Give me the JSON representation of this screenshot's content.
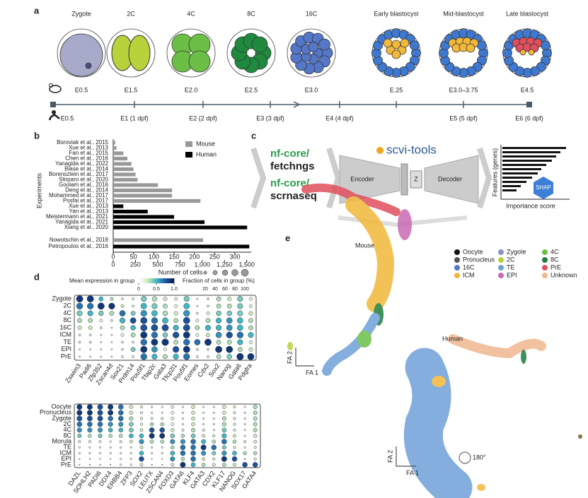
{
  "panel_labels": [
    "a",
    "b",
    "c",
    "d",
    "e"
  ],
  "panel_a": {
    "stages": [
      "Zygote",
      "2C",
      "4C",
      "8C",
      "16C",
      "Early blastocyst",
      "Mid-blastocyst",
      "Late blastocyst"
    ],
    "mouse_times": [
      "E0.5",
      "E1.5",
      "E2.0",
      "E2.5",
      "E3.0",
      "E.25",
      "E3.0–3.75",
      "E4.5"
    ],
    "human_times": [
      "E0.5",
      "E1 (1 dpf)",
      "E2 (2 dpf)",
      "E3 (3 dpf)",
      "E4 (4 dpf)",
      "E5 (5 dpf)",
      "E6 (6 dpf)"
    ]
  },
  "chart_data": [
    {
      "type": "hbar",
      "ylabel": "Experiments",
      "categories": [
        "Boroviak et al., 2015",
        "Xue et al., 2013",
        "Fan et al., 2015",
        "Chen et al., 2016",
        "Yanagida et al., 2022",
        "Biase et al., 2014",
        "Borensztein et al., 2017",
        "Stirparo et al., 2020",
        "Goolam et al., 2016",
        "Deng et al., 2014",
        "Mohammed et al., 2017",
        "Posfai et al., 2017",
        "Xue et al., 2013",
        "Yan et al., 2013",
        "Meistermann et al., 2021",
        "Yanagida et al., 2021",
        "Xiang et al., 2020"
      ],
      "series": [
        {
          "name": "Mouse",
          "color": "#999999",
          "values": [
            5,
            8,
            25,
            35,
            45,
            50,
            55,
            60,
            110,
            145,
            145,
            215,
            null,
            null,
            null,
            null,
            null
          ]
        },
        {
          "name": "Human",
          "color": "#000000",
          "values": [
            null,
            null,
            null,
            null,
            null,
            null,
            null,
            null,
            null,
            null,
            null,
            null,
            25,
            85,
            150,
            225,
            330
          ]
        }
      ],
      "xlim": [
        0,
        340
      ],
      "xticks": [
        0,
        50,
        100,
        150,
        200,
        250,
        300
      ]
    },
    {
      "type": "hbar",
      "xlabel": "Number of cells",
      "categories": [
        "Nowotschin et al., 2019",
        "Petropoulos et al., 2016"
      ],
      "series": [
        {
          "name": "Mouse",
          "color": "#999999",
          "values": [
            1010,
            null
          ]
        },
        {
          "name": "Human",
          "color": "#000000",
          "values": [
            null,
            1529
          ]
        }
      ],
      "xlim": [
        0,
        1550
      ],
      "xticks": [
        0,
        250,
        500,
        750,
        {
          "value": 1000,
          "label": "1,000"
        },
        {
          "value": 1250,
          "label": "1,250"
        },
        {
          "value": 1500,
          "label": "1,500"
        }
      ]
    },
    {
      "type": "dot",
      "color_label": "Mean expression in group",
      "clim": [
        0,
        1
      ],
      "color_ticks": [
        0,
        0.5,
        {
          "value": 1,
          "label": "1.0"
        }
      ],
      "size_label": "Fraction of cells in group (%)",
      "size_ticks": [
        20,
        40,
        60,
        80,
        100
      ],
      "rows": [
        "Zygote",
        "2C",
        "4C",
        "8C",
        "16C",
        "ICM",
        "TE",
        "EPI",
        "PrE"
      ],
      "columns": [
        "Zswim3",
        "Padi6",
        "Zfp352",
        "Zscan4d",
        "Sox21",
        "Prdm14",
        "Pou5f1",
        "Tfap2c",
        "Gata3",
        "Tfcp2l1",
        "Pou5f1",
        "Eomes",
        "Cdx2",
        "Sox2",
        "Nanog",
        "Gata6",
        "Pdgfra"
      ],
      "fraction": [
        [
          90,
          90,
          40,
          20,
          10,
          10,
          60,
          50,
          30,
          20,
          60,
          5,
          10,
          40,
          30,
          60,
          20
        ],
        [
          80,
          80,
          90,
          80,
          20,
          10,
          70,
          60,
          40,
          20,
          70,
          5,
          10,
          40,
          40,
          60,
          20
        ],
        [
          60,
          60,
          50,
          40,
          70,
          40,
          80,
          70,
          50,
          30,
          80,
          10,
          20,
          50,
          50,
          60,
          30
        ],
        [
          40,
          40,
          20,
          10,
          60,
          70,
          90,
          80,
          70,
          40,
          90,
          20,
          40,
          60,
          70,
          70,
          40
        ],
        [
          30,
          30,
          10,
          5,
          40,
          50,
          90,
          90,
          90,
          60,
          90,
          40,
          60,
          60,
          70,
          70,
          40
        ],
        [
          10,
          10,
          5,
          5,
          20,
          40,
          90,
          80,
          50,
          80,
          90,
          20,
          30,
          70,
          80,
          80,
          60
        ],
        [
          10,
          10,
          5,
          5,
          10,
          10,
          80,
          90,
          95,
          40,
          80,
          70,
          90,
          40,
          40,
          60,
          20
        ],
        [
          5,
          5,
          5,
          5,
          10,
          40,
          90,
          70,
          20,
          80,
          90,
          10,
          10,
          90,
          90,
          40,
          30
        ],
        [
          5,
          5,
          5,
          5,
          10,
          10,
          80,
          60,
          40,
          60,
          80,
          10,
          10,
          40,
          50,
          95,
          90
        ]
      ],
      "expression": [
        [
          0.9,
          0.9,
          0.5,
          0.3,
          0.1,
          0.1,
          0.4,
          0.3,
          0.2,
          0.1,
          0.4,
          0,
          0.1,
          0.3,
          0.2,
          0.4,
          0.1
        ],
        [
          0.7,
          0.7,
          0.9,
          0.9,
          0.2,
          0.1,
          0.5,
          0.4,
          0.3,
          0.1,
          0.5,
          0,
          0.1,
          0.3,
          0.3,
          0.4,
          0.1
        ],
        [
          0.4,
          0.5,
          0.4,
          0.3,
          0.7,
          0.4,
          0.6,
          0.5,
          0.3,
          0.2,
          0.6,
          0.1,
          0.1,
          0.4,
          0.4,
          0.4,
          0.2
        ],
        [
          0.3,
          0.3,
          0.1,
          0.1,
          0.5,
          0.8,
          0.8,
          0.7,
          0.5,
          0.3,
          0.8,
          0.1,
          0.3,
          0.5,
          0.6,
          0.5,
          0.3
        ],
        [
          0.2,
          0.2,
          0.1,
          0,
          0.3,
          0.5,
          0.8,
          0.8,
          0.8,
          0.5,
          0.8,
          0.3,
          0.5,
          0.5,
          0.6,
          0.5,
          0.3
        ],
        [
          0.1,
          0.1,
          0,
          0,
          0.1,
          0.3,
          0.9,
          0.7,
          0.4,
          0.8,
          0.9,
          0.1,
          0.2,
          0.6,
          0.8,
          0.7,
          0.5
        ],
        [
          0.1,
          0.1,
          0,
          0,
          0.1,
          0.1,
          0.7,
          0.9,
          0.9,
          0.3,
          0.7,
          0.7,
          0.9,
          0.3,
          0.3,
          0.5,
          0.1
        ],
        [
          0,
          0,
          0,
          0,
          0.1,
          0.4,
          0.9,
          0.6,
          0.1,
          0.8,
          0.9,
          0.1,
          0.1,
          0.9,
          0.9,
          0.3,
          0.2
        ],
        [
          0,
          0,
          0,
          0,
          0.1,
          0.1,
          0.7,
          0.5,
          0.3,
          0.5,
          0.7,
          0.1,
          0.1,
          0.3,
          0.4,
          0.9,
          0.9
        ]
      ]
    },
    {
      "type": "dot",
      "clim": [
        0,
        1
      ],
      "rows": [
        "Oocyte",
        "Pronucleus",
        "Zygote",
        "2C",
        "4C",
        "8C",
        "Morula",
        "TE",
        "ICM",
        "EPI",
        "PrE"
      ],
      "columns": [
        "DAZL",
        "SOHLH2",
        "PADI6",
        "DDX4",
        "ERBB4",
        "ZFP3",
        "SOX2",
        "LEUTX",
        "ZSCAN4",
        "FOXD3",
        "GATA6",
        "KLF4",
        "GATA3",
        "CDX2",
        "KLF17",
        "NANOG",
        "SOX17",
        "GATA4"
      ],
      "fraction": [
        [
          90,
          90,
          90,
          90,
          80,
          40,
          20,
          10,
          10,
          30,
          10,
          40,
          10,
          10,
          40,
          20,
          10,
          50
        ],
        [
          90,
          90,
          90,
          90,
          80,
          40,
          20,
          10,
          10,
          30,
          10,
          40,
          10,
          10,
          40,
          20,
          10,
          50
        ],
        [
          90,
          90,
          90,
          80,
          80,
          50,
          20,
          20,
          20,
          30,
          10,
          40,
          10,
          10,
          50,
          20,
          10,
          50
        ],
        [
          80,
          80,
          80,
          70,
          70,
          60,
          20,
          40,
          40,
          30,
          10,
          40,
          10,
          10,
          50,
          20,
          10,
          50
        ],
        [
          70,
          70,
          70,
          60,
          60,
          60,
          30,
          80,
          80,
          40,
          20,
          50,
          20,
          10,
          60,
          20,
          10,
          50
        ],
        [
          50,
          40,
          50,
          40,
          40,
          60,
          60,
          90,
          90,
          60,
          40,
          60,
          30,
          20,
          70,
          30,
          10,
          40
        ],
        [
          20,
          20,
          20,
          10,
          20,
          30,
          70,
          40,
          40,
          70,
          70,
          80,
          60,
          40,
          80,
          40,
          20,
          30
        ],
        [
          10,
          10,
          10,
          10,
          10,
          10,
          30,
          10,
          10,
          40,
          80,
          80,
          90,
          80,
          50,
          20,
          10,
          20
        ],
        [
          10,
          10,
          10,
          10,
          10,
          10,
          60,
          10,
          10,
          60,
          80,
          80,
          70,
          50,
          70,
          60,
          40,
          40
        ],
        [
          5,
          5,
          5,
          5,
          10,
          10,
          80,
          5,
          5,
          70,
          40,
          80,
          30,
          20,
          90,
          80,
          10,
          20
        ],
        [
          5,
          5,
          5,
          5,
          10,
          10,
          30,
          5,
          5,
          30,
          90,
          60,
          40,
          30,
          40,
          30,
          80,
          80
        ]
      ],
      "expression": [
        [
          0.9,
          0.9,
          0.8,
          0.9,
          0.7,
          0.2,
          0.1,
          0,
          0,
          0.1,
          0,
          0.2,
          0,
          0,
          0.2,
          0.1,
          0,
          0.3
        ],
        [
          0.9,
          0.9,
          0.8,
          0.9,
          0.7,
          0.2,
          0.1,
          0,
          0,
          0.1,
          0,
          0.2,
          0,
          0,
          0.2,
          0.1,
          0,
          0.3
        ],
        [
          0.8,
          0.8,
          0.8,
          0.7,
          0.7,
          0.3,
          0.1,
          0.1,
          0.1,
          0.1,
          0,
          0.2,
          0,
          0,
          0.3,
          0.1,
          0,
          0.3
        ],
        [
          0.7,
          0.7,
          0.7,
          0.6,
          0.6,
          0.4,
          0.1,
          0.3,
          0.3,
          0.1,
          0,
          0.2,
          0,
          0,
          0.3,
          0.1,
          0,
          0.3
        ],
        [
          0.6,
          0.6,
          0.6,
          0.5,
          0.5,
          0.4,
          0.2,
          0.8,
          0.8,
          0.2,
          0.1,
          0.3,
          0.1,
          0,
          0.4,
          0.1,
          0,
          0.3
        ],
        [
          0.4,
          0.3,
          0.4,
          0.3,
          0.3,
          0.5,
          0.5,
          0.9,
          0.9,
          0.4,
          0.3,
          0.4,
          0.2,
          0.1,
          0.5,
          0.2,
          0,
          0.2
        ],
        [
          0.1,
          0.1,
          0.1,
          0,
          0.1,
          0.2,
          0.6,
          0.3,
          0.3,
          0.6,
          0.6,
          0.7,
          0.5,
          0.3,
          0.7,
          0.3,
          0.1,
          0.2
        ],
        [
          0,
          0,
          0,
          0,
          0,
          0,
          0.2,
          0,
          0,
          0.3,
          0.7,
          0.7,
          0.9,
          0.7,
          0.4,
          0.1,
          0,
          0.1
        ],
        [
          0,
          0,
          0,
          0,
          0,
          0,
          0.5,
          0,
          0,
          0.5,
          0.7,
          0.7,
          0.6,
          0.4,
          0.6,
          0.5,
          0.3,
          0.3
        ],
        [
          0,
          0,
          0,
          0,
          0,
          0,
          0.8,
          0,
          0,
          0.6,
          0.3,
          0.7,
          0.2,
          0.1,
          0.9,
          0.8,
          0,
          0.1
        ],
        [
          0,
          0,
          0,
          0,
          0,
          0,
          0.2,
          0,
          0,
          0.2,
          0.9,
          0.5,
          0.3,
          0.2,
          0.3,
          0.2,
          0.8,
          0.8
        ]
      ]
    }
  ],
  "panel_c": {
    "nf1": "nf-core/",
    "tool1": "fetchngs",
    "nf2": "nf-core/",
    "tool2": "scrnaseq",
    "model": "scvi-tools",
    "encoder": "Encoder",
    "latent": "Z",
    "decoder": "Decoder",
    "ylabel": "Features (genes)",
    "xlabel": "Importance score",
    "shap": "SHAP"
  },
  "panel_e": {
    "mouse": "Mouse",
    "human": "Human",
    "x": "FA 1",
    "y": "FA 2",
    "rotation": "180°",
    "legend": [
      {
        "name": "Oocyte",
        "color": "#111111"
      },
      {
        "name": "Pronucleus",
        "color": "#555555"
      },
      {
        "name": "16C",
        "color": "#5577c8"
      },
      {
        "name": "ICM",
        "color": "#f2b83a"
      },
      {
        "name": "Zygote",
        "color": "#8a93c4"
      },
      {
        "name": "2C",
        "color": "#b8d23c"
      },
      {
        "name": "TE",
        "color": "#6fa0d8"
      },
      {
        "name": "EPI",
        "color": "#c86ab5"
      },
      {
        "name": "4C",
        "color": "#6bbf45"
      },
      {
        "name": "8C",
        "color": "#1f7d3e"
      },
      {
        "name": "PrE",
        "color": "#e0505e"
      },
      {
        "name": "Unknown",
        "color": "#f0b890"
      }
    ]
  }
}
